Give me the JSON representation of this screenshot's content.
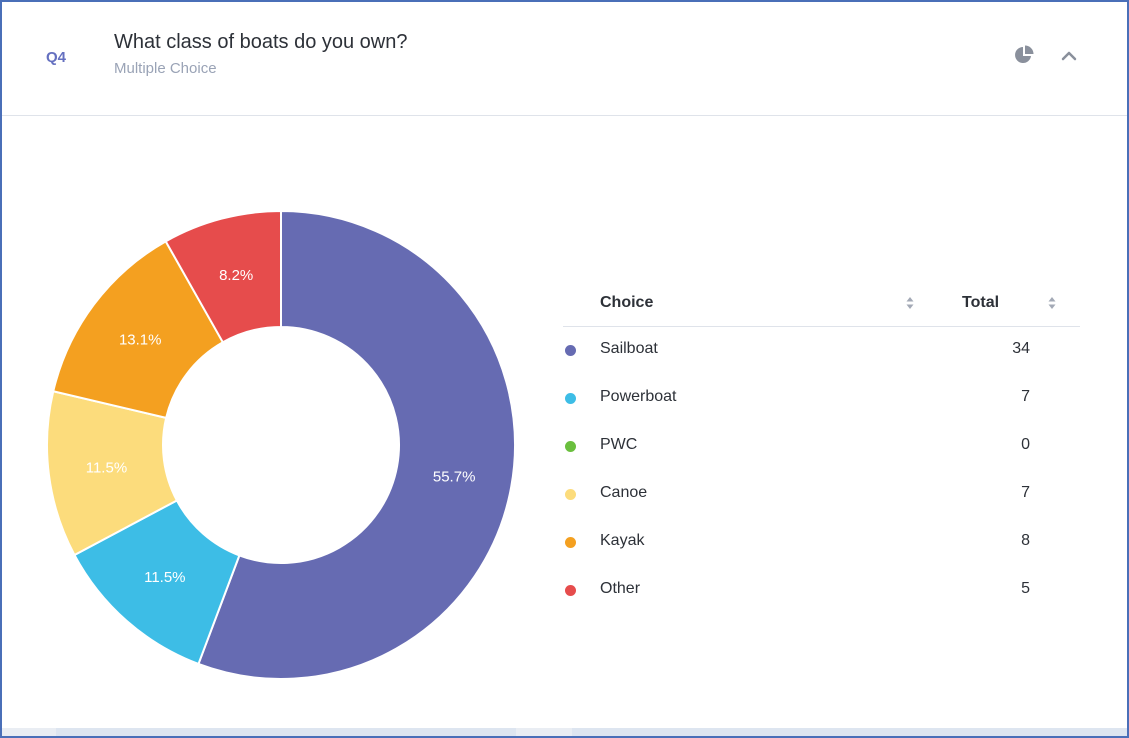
{
  "question": {
    "number": "Q4",
    "title": "What class of boats do you own?",
    "type": "Multiple Choice"
  },
  "icons": {
    "chart_toggle": "pie-chart-icon",
    "collapse": "chevron-up-icon",
    "sort": "sort-icon"
  },
  "table": {
    "choice_header": "Choice",
    "total_header": "Total",
    "rows": [
      {
        "label": "Sailboat",
        "total": "34",
        "color": "#666bb2"
      },
      {
        "label": "Powerboat",
        "total": "7",
        "color": "#3dbde6"
      },
      {
        "label": "PWC",
        "total": "0",
        "color": "#6abf3e"
      },
      {
        "label": "Canoe",
        "total": "7",
        "color": "#fcdc7c"
      },
      {
        "label": "Kayak",
        "total": "8",
        "color": "#f4a020"
      },
      {
        "label": "Other",
        "total": "5",
        "color": "#e64c4c"
      }
    ]
  },
  "chart_data": {
    "type": "pie",
    "donut": true,
    "categories": [
      "Sailboat",
      "Powerboat",
      "PWC",
      "Canoe",
      "Kayak",
      "Other"
    ],
    "values": [
      34,
      7,
      0,
      7,
      8,
      5
    ],
    "percent_labels": [
      "55.7%",
      "11.5%",
      "",
      "11.5%",
      "13.1%",
      "8.2%"
    ],
    "colors": [
      "#666bb2",
      "#3dbde6",
      "#6abf3e",
      "#fcdc7c",
      "#f4a020",
      "#e64c4c"
    ],
    "start_angle": "12 o'clock",
    "direction": "clockwise",
    "legend": "right"
  }
}
